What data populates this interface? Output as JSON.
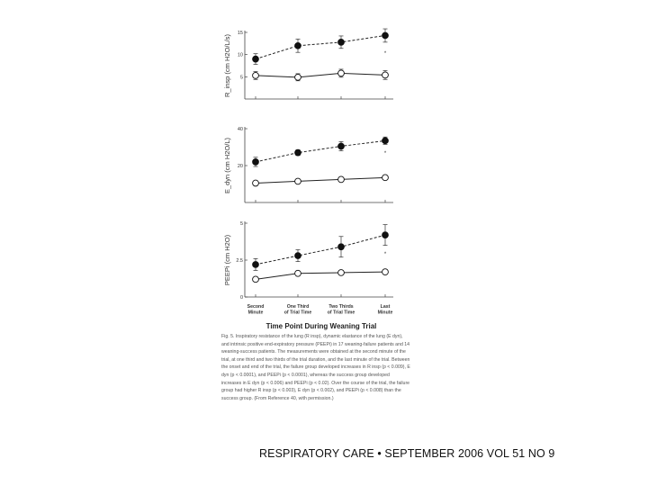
{
  "chart_data": [
    {
      "type": "line",
      "ylabel": "R_insp (cm H2O/L/s)",
      "ylim": [
        0,
        15
      ],
      "yticks": [
        "15",
        "10",
        "5"
      ],
      "yticks_values": [
        15,
        10,
        5
      ],
      "categories": [
        "Second Minute",
        "One Third of Trial Time",
        "Two Thirds of Trial Time",
        "Last Minute"
      ],
      "significance_mark": "*",
      "series": [
        {
          "name": "failure",
          "marker": "filled",
          "line": "dashed",
          "values": [
            9,
            12,
            12.8,
            14.3
          ],
          "err": [
            1.2,
            1.5,
            1.4,
            1.5
          ]
        },
        {
          "name": "success",
          "marker": "open",
          "line": "solid",
          "values": [
            5.3,
            4.9,
            5.8,
            5.4
          ],
          "err": [
            0.9,
            0.8,
            0.9,
            1.0
          ]
        }
      ]
    },
    {
      "type": "line",
      "ylabel": "E_dyn (cm H2O/L)",
      "ylim": [
        0,
        40
      ],
      "yticks": [
        "40",
        "20"
      ],
      "yticks_values": [
        40,
        20
      ],
      "categories": [
        "Second Minute",
        "One Third of Trial Time",
        "Two Thirds of Trial Time",
        "Last Minute"
      ],
      "significance_mark": "*",
      "series": [
        {
          "name": "failure",
          "marker": "filled",
          "line": "dashed",
          "values": [
            22,
            27,
            30.5,
            33.5
          ],
          "err": [
            2.5,
            1.5,
            2.5,
            2.0
          ]
        },
        {
          "name": "success",
          "marker": "open",
          "line": "solid",
          "values": [
            10.5,
            11.5,
            12.5,
            13.5
          ],
          "err": [
            0.6,
            0.6,
            0.6,
            0.6
          ]
        }
      ]
    },
    {
      "type": "line",
      "ylabel": "PEEPi (cm H2O)",
      "ylim": [
        0,
        5
      ],
      "yticks": [
        "5",
        "2.5",
        "0"
      ],
      "yticks_values": [
        5,
        2.5,
        0
      ],
      "categories": [
        "Second Minute",
        "One Third of Trial Time",
        "Two Thirds of Trial Time",
        "Last Minute"
      ],
      "xtick_lines": [
        [
          "Second",
          "Minute"
        ],
        [
          "One Third",
          "of Trial Time"
        ],
        [
          "Two Thirds",
          "of Trial Time"
        ],
        [
          "Last",
          "Minute"
        ]
      ],
      "xlabel": "Time Point During Weaning Trial",
      "significance_mark": "*",
      "series": [
        {
          "name": "failure",
          "marker": "filled",
          "line": "dashed",
          "values": [
            2.2,
            2.8,
            3.4,
            4.2
          ],
          "err": [
            0.4,
            0.4,
            0.7,
            0.7
          ]
        },
        {
          "name": "success",
          "marker": "open",
          "line": "solid",
          "values": [
            1.2,
            1.6,
            1.65,
            1.7
          ],
          "err": [
            0.1,
            0.1,
            0.1,
            0.1
          ]
        }
      ]
    }
  ],
  "caption": "Fig. 5. Inspiratory resistance of the lung (R insp), dynamic elastance of the lung (E dyn), and intrinsic positive end-expiratory pressure (PEEPi) in 17 weaning-failure patients and 14 weaning-success patients. The measurements were obtained at the second minute of the trial, at one third and two thirds of the trial duration, and the last minute of the trial. Between the onset and end of the trial, the failure group developed increases in R insp (p < 0.009), E dyn (p < 0.0001), and PEEPi (p < 0.0001), whereas the success group developed increases in E dyn (p < 0.006) and PEEPi (p < 0.02). Over the course of the trial, the failure group had higher R insp (p < 0.003), E dyn (p < 0.002), and PEEPi (p < 0.008) than the success group. (From Reference 40, with permission.)",
  "footer": "RESPIRATORY CARE • SEPTEMBER 2006 VOL 51 NO 9"
}
